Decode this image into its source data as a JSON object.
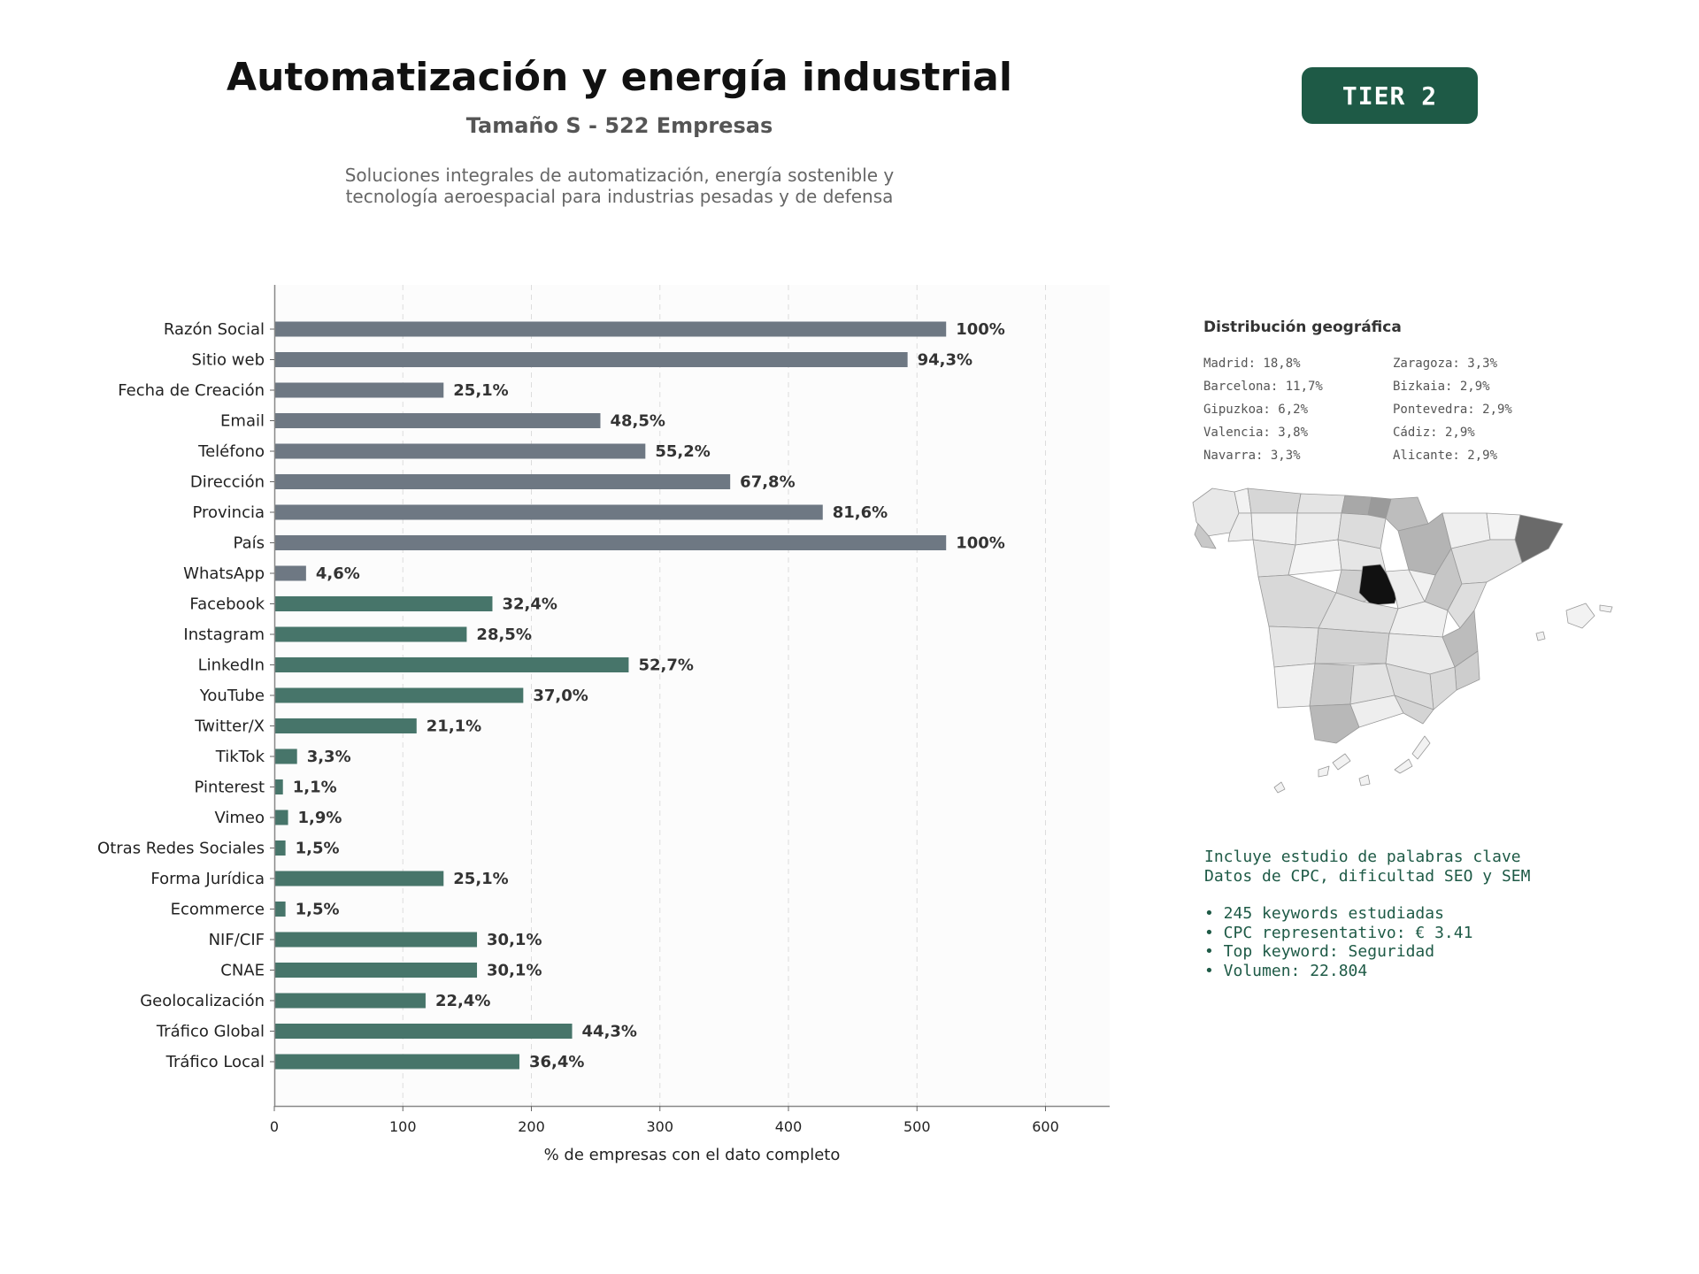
{
  "header": {
    "title": "Automatización y energía industrial",
    "subtitle": "Tamaño S - 522 Empresas",
    "description_line1": "Soluciones integrales de automatización, energía sostenible y",
    "description_line2": "tecnología aeroespacial para industrias pesadas y de defensa",
    "tier": "TIER 2"
  },
  "chart_data": {
    "type": "bar",
    "orientation": "horizontal",
    "xlabel": "% de empresas con el dato completo",
    "xlim": [
      0,
      650
    ],
    "xticks": [
      0,
      100,
      200,
      300,
      400,
      500,
      600
    ],
    "grid": true,
    "colors": {
      "basic": "#6e7883",
      "digital": "#47756a"
    },
    "bars": [
      {
        "label": "Razón Social",
        "value": 522,
        "pct": "100%",
        "group": "basic"
      },
      {
        "label": "Sitio web",
        "value": 492,
        "pct": "94,3%",
        "group": "basic"
      },
      {
        "label": "Fecha de Creación",
        "value": 131,
        "pct": "25,1%",
        "group": "basic"
      },
      {
        "label": "Email",
        "value": 253,
        "pct": "48,5%",
        "group": "basic"
      },
      {
        "label": "Teléfono",
        "value": 288,
        "pct": "55,2%",
        "group": "basic"
      },
      {
        "label": "Dirección",
        "value": 354,
        "pct": "67,8%",
        "group": "basic"
      },
      {
        "label": "Provincia",
        "value": 426,
        "pct": "81,6%",
        "group": "basic"
      },
      {
        "label": "País",
        "value": 522,
        "pct": "100%",
        "group": "basic"
      },
      {
        "label": "WhatsApp",
        "value": 24,
        "pct": "4,6%",
        "group": "basic"
      },
      {
        "label": "Facebook",
        "value": 169,
        "pct": "32,4%",
        "group": "digital"
      },
      {
        "label": "Instagram",
        "value": 149,
        "pct": "28,5%",
        "group": "digital"
      },
      {
        "label": "LinkedIn",
        "value": 275,
        "pct": "52,7%",
        "group": "digital"
      },
      {
        "label": "YouTube",
        "value": 193,
        "pct": "37,0%",
        "group": "digital"
      },
      {
        "label": "Twitter/X",
        "value": 110,
        "pct": "21,1%",
        "group": "digital"
      },
      {
        "label": "TikTok",
        "value": 17,
        "pct": "3,3%",
        "group": "digital"
      },
      {
        "label": "Pinterest",
        "value": 6,
        "pct": "1,1%",
        "group": "digital"
      },
      {
        "label": "Vimeo",
        "value": 10,
        "pct": "1,9%",
        "group": "digital"
      },
      {
        "label": "Otras Redes Sociales",
        "value": 8,
        "pct": "1,5%",
        "group": "digital"
      },
      {
        "label": "Forma Jurídica",
        "value": 131,
        "pct": "25,1%",
        "group": "digital"
      },
      {
        "label": "Ecommerce",
        "value": 8,
        "pct": "1,5%",
        "group": "digital"
      },
      {
        "label": "NIF/CIF",
        "value": 157,
        "pct": "30,1%",
        "group": "digital"
      },
      {
        "label": "CNAE",
        "value": 157,
        "pct": "30,1%",
        "group": "digital"
      },
      {
        "label": "Geolocalización",
        "value": 117,
        "pct": "22,4%",
        "group": "digital"
      },
      {
        "label": "Tráfico Global",
        "value": 231,
        "pct": "44,3%",
        "group": "digital"
      },
      {
        "label": "Tráfico Local",
        "value": 190,
        "pct": "36,4%",
        "group": "digital"
      }
    ]
  },
  "geo": {
    "title": "Distribución geográfica",
    "col1": [
      "Madrid: 18,8%",
      "Barcelona: 11,7%",
      "Gipuzkoa: 6,2%",
      "Valencia: 3,8%",
      "Navarra: 3,3%"
    ],
    "col2": [
      "Zaragoza: 3,3%",
      "Bizkaia: 2,9%",
      "Pontevedra: 2,9%",
      "Cádiz: 2,9%",
      "Alicante: 2,9%"
    ]
  },
  "seo": {
    "line1": "Incluye estudio de palabras clave",
    "line2": "Datos de CPC, dificultad SEO y SEM",
    "bullet1": "• 245 keywords estudiadas",
    "bullet2": "• CPC representativo: € 3.41",
    "bullet3": "• Top keyword: Seguridad",
    "bullet4": "• Volumen: 22.804"
  }
}
